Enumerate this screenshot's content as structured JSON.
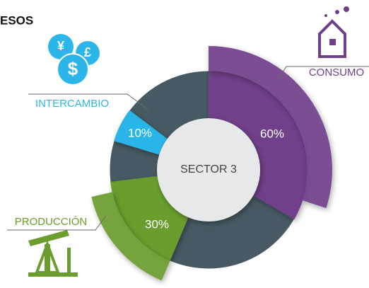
{
  "chart_data": {
    "type": "pie",
    "title": "ESOS",
    "center_label": "SECTOR 3",
    "categories": [
      "CONSUMO",
      "PRODUCCIÓN",
      "INTERCAMBIO"
    ],
    "values": [
      60,
      30,
      10
    ],
    "value_labels": [
      "60%",
      "30%",
      "10%"
    ],
    "colors": [
      "#6f3f8a",
      "#6a9d2d",
      "#2cb5e8"
    ]
  }
}
